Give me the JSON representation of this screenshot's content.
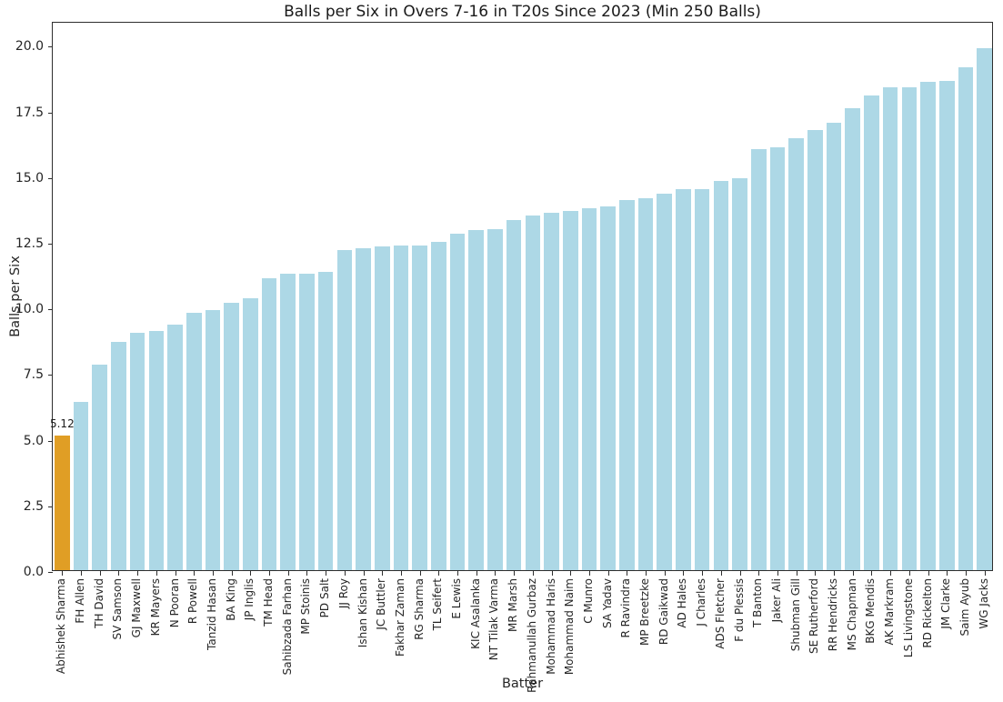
{
  "chart_data": {
    "type": "bar",
    "title": "Balls per Six in Overs 7-16 in T20s Since 2023 (Min 250 Balls)",
    "xlabel": "Batter",
    "ylabel": "Balls per Six",
    "ylim": [
      0,
      20.91
    ],
    "yticks": [
      "0.0",
      "2.5",
      "5.0",
      "7.5",
      "10.0",
      "12.5",
      "15.0",
      "17.5",
      "20.0"
    ],
    "grid": false,
    "legend": "none",
    "bar_color": "#ADD8E6",
    "highlight_color": "#E09E25",
    "highlight_index": 0,
    "annotation": {
      "text": "5.12",
      "bar_index": 0
    },
    "categories": [
      "Abhishek Sharma",
      "FH Allen",
      "TH David",
      "SV Samson",
      "GJ Maxwell",
      "KR Mayers",
      "N Pooran",
      "R Powell",
      "Tanzid Hasan",
      "BA King",
      "JP Inglis",
      "TM Head",
      "Sahibzada Farhan",
      "MP Stoinis",
      "PD Salt",
      "JJ Roy",
      "Ishan Kishan",
      "JC Buttler",
      "Fakhar Zaman",
      "RG Sharma",
      "TL Seifert",
      "E Lewis",
      "KIC Asalanka",
      "NT Tilak Varma",
      "MR Marsh",
      "Rahmanullah Gurbaz",
      "Mohammad Haris",
      "Mohammad Naim",
      "C Munro",
      "SA Yadav",
      "R Ravindra",
      "MP Breetzke",
      "RD Gaikwad",
      "AD Hales",
      "J Charles",
      "ADS Fletcher",
      "F du Plessis",
      "T Banton",
      "Jaker Ali",
      "Shubman Gill",
      "SE Rutherford",
      "RR Hendricks",
      "MS Chapman",
      "BKG Mendis",
      "AK Markram",
      "LS Livingstone",
      "RD Rickelton",
      "JM Clarke",
      "Saim Ayub",
      "WG Jacks"
    ],
    "values": [
      5.12,
      6.4,
      7.83,
      8.7,
      9.05,
      9.1,
      9.35,
      9.8,
      9.91,
      10.17,
      10.34,
      11.12,
      11.27,
      11.27,
      11.34,
      12.2,
      12.25,
      12.32,
      12.35,
      12.35,
      12.5,
      12.81,
      12.96,
      12.98,
      13.32,
      13.5,
      13.6,
      13.68,
      13.79,
      13.86,
      14.1,
      14.16,
      14.33,
      14.5,
      14.5,
      14.82,
      14.93,
      16.02,
      16.09,
      16.46,
      16.76,
      17.03,
      17.6,
      18.06,
      18.38,
      18.38,
      18.59,
      18.64,
      19.15,
      19.87
    ]
  }
}
